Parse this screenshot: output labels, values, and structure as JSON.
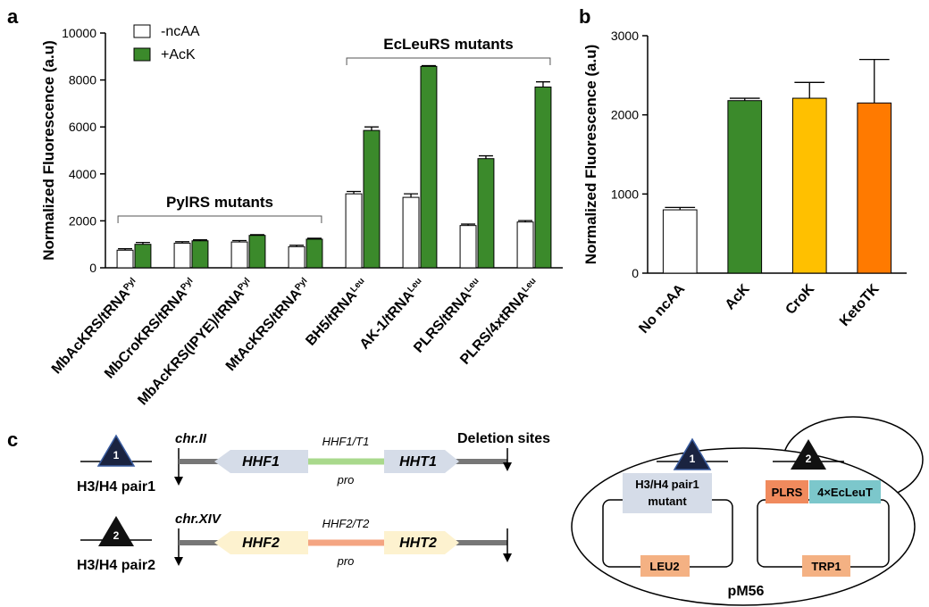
{
  "panel_labels": [
    "a",
    "b",
    "c"
  ],
  "chart_data": [
    {
      "type": "grouped-bar",
      "ylabel": "Normalized Fluorescence (a.u)",
      "categories": [
        "MbAcKRS/tRNA",
        "MbCroKRS/tRNA",
        "MbAcKRS(IPYE)/tRNA",
        "MtAcKRS/tRNA",
        "BH5/tRNA",
        "AK-1/tRNA",
        "PLRS/tRNA",
        "PLRS/4xtRNA"
      ],
      "category_superscripts": [
        "Pyl",
        "Pyl",
        "Pyl",
        "Pyl",
        "Leu",
        "Leu",
        "Leu",
        "Leu"
      ],
      "series": [
        {
          "name": "-ncAA",
          "color": "#ffffff",
          "values": [
            750,
            1050,
            1100,
            900,
            3150,
            3000,
            1800,
            1950
          ],
          "errors": [
            60,
            60,
            60,
            60,
            100,
            150,
            60,
            60
          ]
        },
        {
          "name": "+AcK",
          "color": "#3b8a2b",
          "values": [
            1000,
            1150,
            1380,
            1220,
            5850,
            8580,
            4650,
            7700
          ],
          "errors": [
            80,
            40,
            30,
            40,
            150,
            30,
            120,
            220
          ]
        }
      ],
      "annotations": [
        "PylRS mutants",
        "EcLeuRS mutants"
      ],
      "ylim": [
        0,
        10000
      ],
      "yticks": [
        0,
        2000,
        4000,
        6000,
        8000,
        10000
      ]
    },
    {
      "type": "bar",
      "ylabel": "Normalized Fluorescence (a.u)",
      "categories": [
        "No ncAA",
        "AcK",
        "CroK",
        "KetoTK"
      ],
      "values": [
        800,
        2180,
        2210,
        2150
      ],
      "errors": [
        30,
        30,
        200,
        550
      ],
      "colors": [
        "#ffffff",
        "#3b8a2b",
        "#ffc000",
        "#ff7a00"
      ],
      "ylim": [
        0,
        3000
      ],
      "yticks": [
        0,
        1000,
        2000,
        3000
      ]
    }
  ],
  "diagram": {
    "deletion_label": "Deletion sites",
    "pairs": [
      {
        "chromosome": "chr.II",
        "gene_left": "HHF1",
        "promoter": "HHF1/T1",
        "promoter_suffix": "pro",
        "gene_right": "HHT1",
        "label": "H3/H4 pair1",
        "marker": "1"
      },
      {
        "chromosome": "chr.XIV",
        "gene_left": "HHF2",
        "promoter": "HHF2/T2",
        "promoter_suffix": "pro",
        "gene_right": "HHT2",
        "label": "H3/H4 pair2",
        "marker": "2"
      }
    ],
    "plasmid": {
      "name": "pM56",
      "site1": "1",
      "site2": "2",
      "cassette1": [
        "H3/H4 pair1",
        "mutant"
      ],
      "marker1": "LEU2",
      "cassette2_left": "PLRS",
      "cassette2_right": "4×EcLeuT",
      "marker2": "TRP1"
    }
  }
}
